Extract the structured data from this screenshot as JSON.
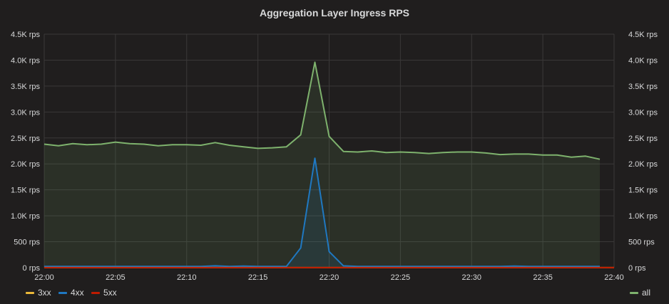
{
  "panel": {
    "title": "Aggregation Layer Ingress RPS"
  },
  "legend": {
    "left": [
      {
        "label": "3xx",
        "color": "#eab839"
      },
      {
        "label": "4xx",
        "color": "#1f78c1"
      },
      {
        "label": "5xx",
        "color": "#bf1b00"
      }
    ],
    "right": [
      {
        "label": "all",
        "color": "#7eb26d"
      }
    ]
  },
  "chart_data": {
    "type": "line",
    "title": "Aggregation Layer Ingress RPS",
    "xlabel": "",
    "ylabel": "",
    "x_ticks": [
      "22:00",
      "22:05",
      "22:10",
      "22:15",
      "22:20",
      "22:25",
      "22:30",
      "22:35",
      "22:40"
    ],
    "y_ticks_left": [
      "0 rps",
      "500 rps",
      "1.0K rps",
      "1.5K rps",
      "2.0K rps",
      "2.5K rps",
      "3.0K rps",
      "3.5K rps",
      "4.0K rps",
      "4.5K rps"
    ],
    "y_ticks_right": [
      "0 rps",
      "500 rps",
      "1.0K rps",
      "1.5K rps",
      "2.0K rps",
      "2.5K rps",
      "3.0K rps",
      "3.5K rps",
      "4.0K rps",
      "4.5K rps"
    ],
    "xlim": [
      "22:00",
      "22:40"
    ],
    "ylim": [
      0,
      4500
    ],
    "grid": true,
    "series": [
      {
        "name": "all",
        "color": "#7eb26d",
        "fill": true,
        "x": [
          "22:00",
          "22:01",
          "22:02",
          "22:03",
          "22:04",
          "22:05",
          "22:06",
          "22:07",
          "22:08",
          "22:09",
          "22:10",
          "22:11",
          "22:12",
          "22:13",
          "22:14",
          "22:15",
          "22:16",
          "22:17",
          "22:18",
          "22:19",
          "22:20",
          "22:21",
          "22:22",
          "22:23",
          "22:24",
          "22:25",
          "22:26",
          "22:27",
          "22:28",
          "22:29",
          "22:30",
          "22:31",
          "22:32",
          "22:33",
          "22:34",
          "22:35",
          "22:36",
          "22:37",
          "22:38",
          "22:39",
          "22:40"
        ],
        "values": [
          2380,
          2350,
          2390,
          2370,
          2380,
          2420,
          2390,
          2380,
          2350,
          2370,
          2370,
          2360,
          2410,
          2360,
          2330,
          2300,
          2310,
          2330,
          2560,
          3960,
          2530,
          2240,
          2230,
          2250,
          2220,
          2230,
          2220,
          2200,
          2220,
          2230,
          2230,
          2210,
          2180,
          2190,
          2190,
          2170,
          2170,
          2130,
          2150,
          2090,
          null
        ]
      },
      {
        "name": "4xx",
        "color": "#1f78c1",
        "fill": true,
        "x": [
          "22:00",
          "22:01",
          "22:02",
          "22:03",
          "22:04",
          "22:05",
          "22:06",
          "22:07",
          "22:08",
          "22:09",
          "22:10",
          "22:11",
          "22:12",
          "22:13",
          "22:14",
          "22:15",
          "22:16",
          "22:17",
          "22:18",
          "22:19",
          "22:20",
          "22:21",
          "22:22",
          "22:23",
          "22:24",
          "22:25",
          "22:26",
          "22:27",
          "22:28",
          "22:29",
          "22:30",
          "22:31",
          "22:32",
          "22:33",
          "22:34",
          "22:35",
          "22:36",
          "22:37",
          "22:38",
          "22:39",
          "22:40"
        ],
        "values": [
          25,
          25,
          25,
          25,
          25,
          25,
          25,
          25,
          25,
          25,
          25,
          25,
          35,
          25,
          30,
          25,
          25,
          25,
          380,
          2110,
          310,
          35,
          25,
          25,
          25,
          25,
          25,
          25,
          25,
          25,
          25,
          25,
          25,
          30,
          25,
          25,
          25,
          25,
          25,
          25,
          null
        ]
      },
      {
        "name": "3xx",
        "color": "#eab839",
        "fill": false,
        "x": [
          "22:00",
          "22:40"
        ],
        "values": [
          2,
          2
        ]
      },
      {
        "name": "5xx",
        "color": "#bf1b00",
        "fill": false,
        "x": [
          "22:00",
          "22:40"
        ],
        "values": [
          1,
          1
        ]
      }
    ]
  }
}
